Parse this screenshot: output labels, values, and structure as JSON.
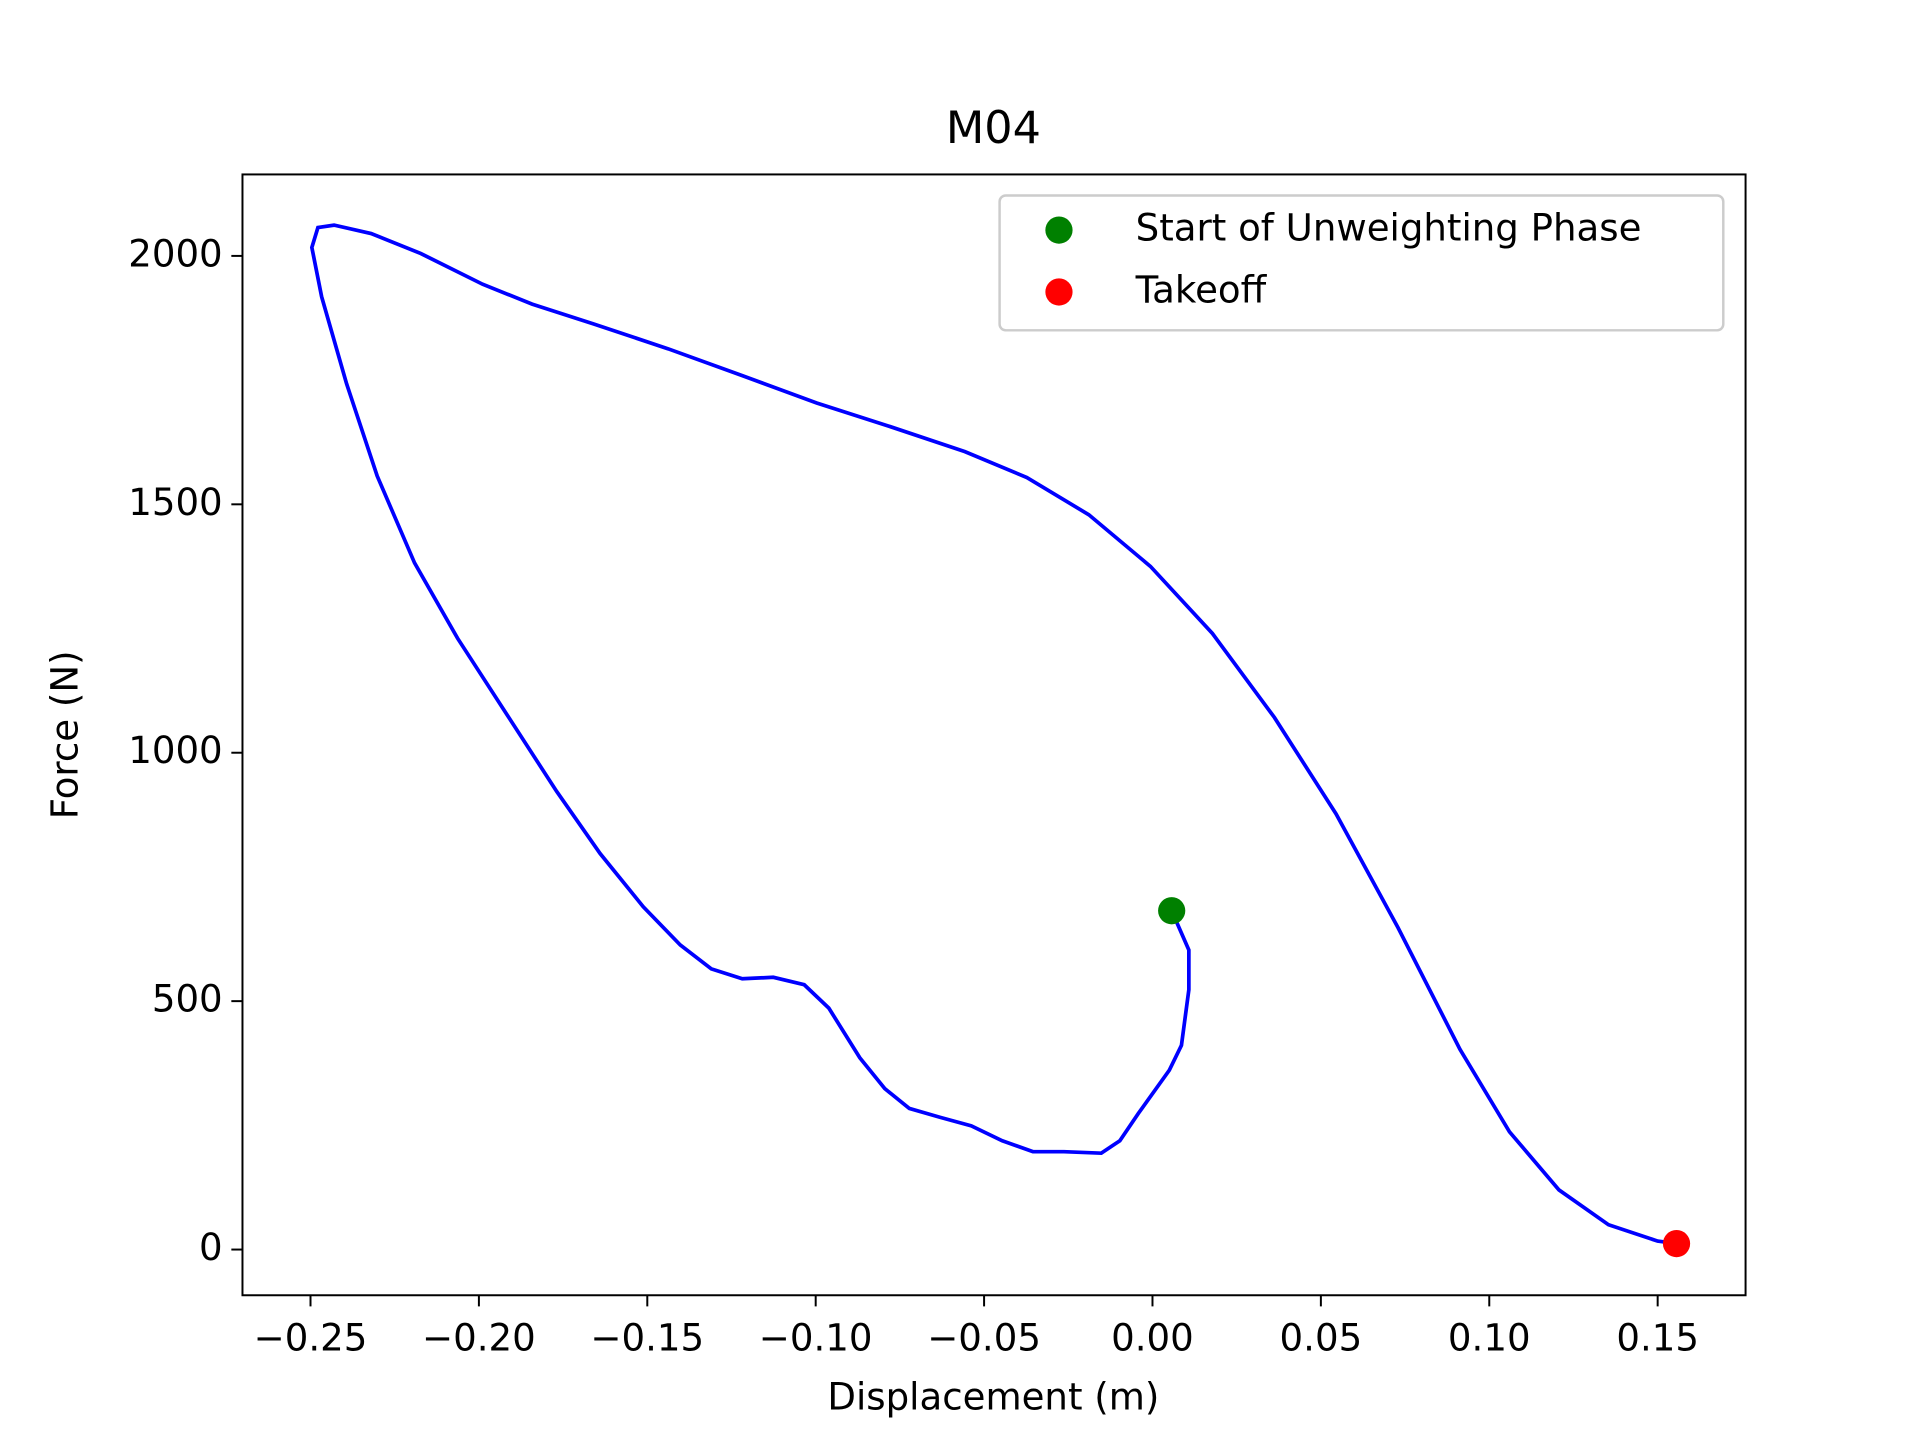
{
  "chart_data": {
    "type": "line",
    "title": "M04",
    "xlabel": "Displacement (m)",
    "ylabel": "Force (N)",
    "xlim": [
      -0.2702,
      0.1761
    ],
    "ylim": [
      -92,
      2164
    ],
    "xticks": [
      {
        "value": -0.25,
        "label": "−0.25"
      },
      {
        "value": -0.2,
        "label": "−0.20"
      },
      {
        "value": -0.15,
        "label": "−0.15"
      },
      {
        "value": -0.1,
        "label": "−0.10"
      },
      {
        "value": -0.05,
        "label": "−0.05"
      },
      {
        "value": 0,
        "label": "0.00"
      },
      {
        "value": 0.05,
        "label": "0.05"
      },
      {
        "value": 0.1,
        "label": "0.10"
      },
      {
        "value": 0.15,
        "label": "0.15"
      }
    ],
    "yticks": [
      0,
      500,
      1000,
      1500,
      2000
    ],
    "legend_position": "upper right",
    "series": [
      {
        "color": "#0000ff",
        "x": [
          0.0057,
          0.0108,
          0.0108,
          0.0086,
          0.005,
          -0.0042,
          -0.0097,
          -0.0152,
          -0.0263,
          -0.0355,
          -0.0446,
          -0.0538,
          -0.063,
          -0.0722,
          -0.0795,
          -0.0869,
          -0.0961,
          -0.1034,
          -0.1126,
          -0.1218,
          -0.131,
          -0.1402,
          -0.1512,
          -0.164,
          -0.1769,
          -0.1916,
          -0.2063,
          -0.2191,
          -0.2302,
          -0.2393,
          -0.2467,
          -0.2496,
          -0.2478,
          -0.243,
          -0.232,
          -0.2173,
          -0.1989,
          -0.1842,
          -0.1659,
          -0.1438,
          -0.1218,
          -0.0997,
          -0.0777,
          -0.0557,
          -0.0373,
          -0.0189,
          -0.0006,
          0.0178,
          0.0362,
          0.0545,
          0.0729,
          0.0913,
          0.106,
          0.1207,
          0.1354,
          0.15,
          0.1556
        ],
        "values": [
          682,
          603,
          523,
          411,
          361,
          274,
          219,
          194,
          197,
          197,
          219,
          249,
          266,
          284,
          324,
          386,
          486,
          533,
          548,
          545,
          565,
          613,
          690,
          797,
          922,
          1076,
          1230,
          1382,
          1557,
          1743,
          1918,
          2017,
          2057,
          2062,
          2045,
          2005,
          1943,
          1903,
          1863,
          1813,
          1759,
          1704,
          1656,
          1606,
          1554,
          1479,
          1375,
          1240,
          1071,
          877,
          648,
          403,
          237,
          120,
          50,
          17,
          12
        ]
      },
      {
        "type": "scatter",
        "name": "Start of Unweighting Phase",
        "color": "#008000",
        "x": [
          0.0057
        ],
        "values": [
          682
        ]
      },
      {
        "type": "scatter",
        "name": "Takeoff",
        "color": "#ff0000",
        "x": [
          0.1556
        ],
        "values": [
          12
        ]
      }
    ]
  }
}
